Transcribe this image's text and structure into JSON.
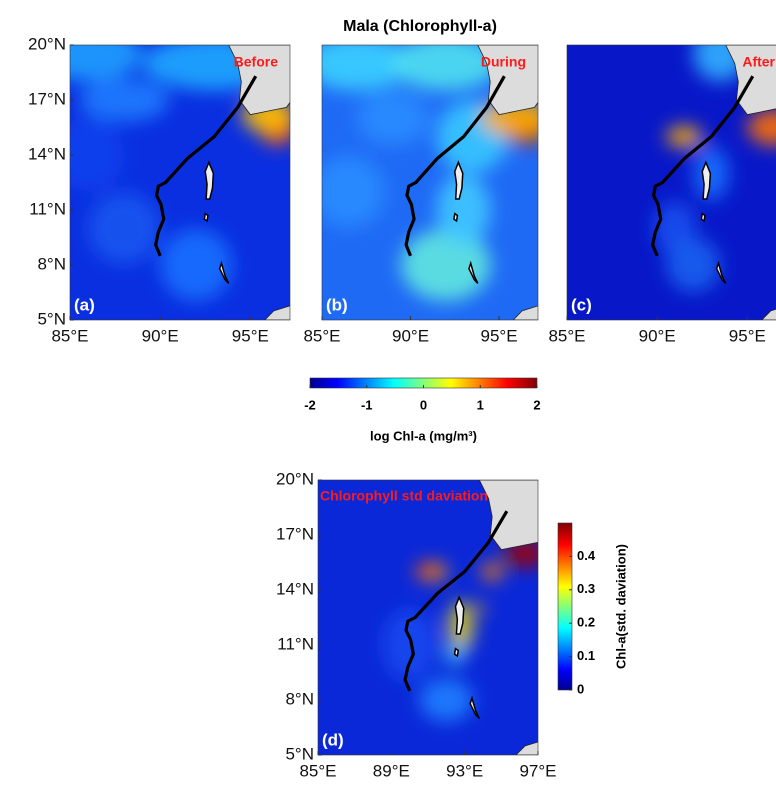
{
  "title": "Mala (Chlorophyll-a)",
  "panels": [
    {
      "label": "(a)",
      "annotation": "Before",
      "xlim": [
        85,
        97.2
      ],
      "ylim": [
        5,
        20
      ],
      "xticks": [
        {
          "value": 85,
          "label": "85°E"
        },
        {
          "value": 90,
          "label": "90°E"
        },
        {
          "value": 95,
          "label": "95°E"
        }
      ],
      "yticks": [
        {
          "value": 20,
          "label": "20°N"
        },
        {
          "value": 17,
          "label": "17°N"
        },
        {
          "value": 14,
          "label": "14°N"
        },
        {
          "value": 11,
          "label": "11°N"
        },
        {
          "value": 8,
          "label": "8°N"
        },
        {
          "value": 5,
          "label": "5°N"
        }
      ]
    },
    {
      "label": "(b)",
      "annotation": "During",
      "xlim": [
        85,
        97.2
      ],
      "ylim": [
        5,
        20
      ],
      "xticks": [
        {
          "value": 85,
          "label": "85°E"
        },
        {
          "value": 90,
          "label": "90°E"
        },
        {
          "value": 95,
          "label": "95°E"
        }
      ]
    },
    {
      "label": "(c)",
      "annotation": "After",
      "xlim": [
        85,
        97.2
      ],
      "ylim": [
        5,
        20
      ],
      "xticks": [
        {
          "value": 85,
          "label": "85°E"
        },
        {
          "value": 90,
          "label": "90°E"
        },
        {
          "value": 95,
          "label": "95°E"
        }
      ]
    },
    {
      "label": "(d)",
      "annotation": "Chlorophyll std daviation",
      "xlim": [
        85,
        97
      ],
      "ylim": [
        5,
        20
      ],
      "xticks": [
        {
          "value": 85,
          "label": "85°E"
        },
        {
          "value": 89,
          "label": "89°E"
        },
        {
          "value": 93,
          "label": "93°E"
        },
        {
          "value": 97,
          "label": "97°E"
        }
      ],
      "yticks": [
        {
          "value": 20,
          "label": "20°N"
        },
        {
          "value": 17,
          "label": "17°N"
        },
        {
          "value": 14,
          "label": "14°N"
        },
        {
          "value": 11,
          "label": "11°N"
        },
        {
          "value": 8,
          "label": "8°N"
        },
        {
          "value": 5,
          "label": "5°N"
        }
      ]
    }
  ],
  "colorbars": [
    {
      "label": "log Chl-a (mg/m³)",
      "lim": [
        -2,
        2
      ],
      "ticks": [
        -2,
        -1,
        0,
        1,
        2
      ]
    },
    {
      "label": "Chl-a(std. daviation)",
      "lim": [
        0,
        0.5
      ],
      "ticks": [
        0,
        0.1,
        0.2,
        0.3,
        0.4
      ]
    }
  ]
}
